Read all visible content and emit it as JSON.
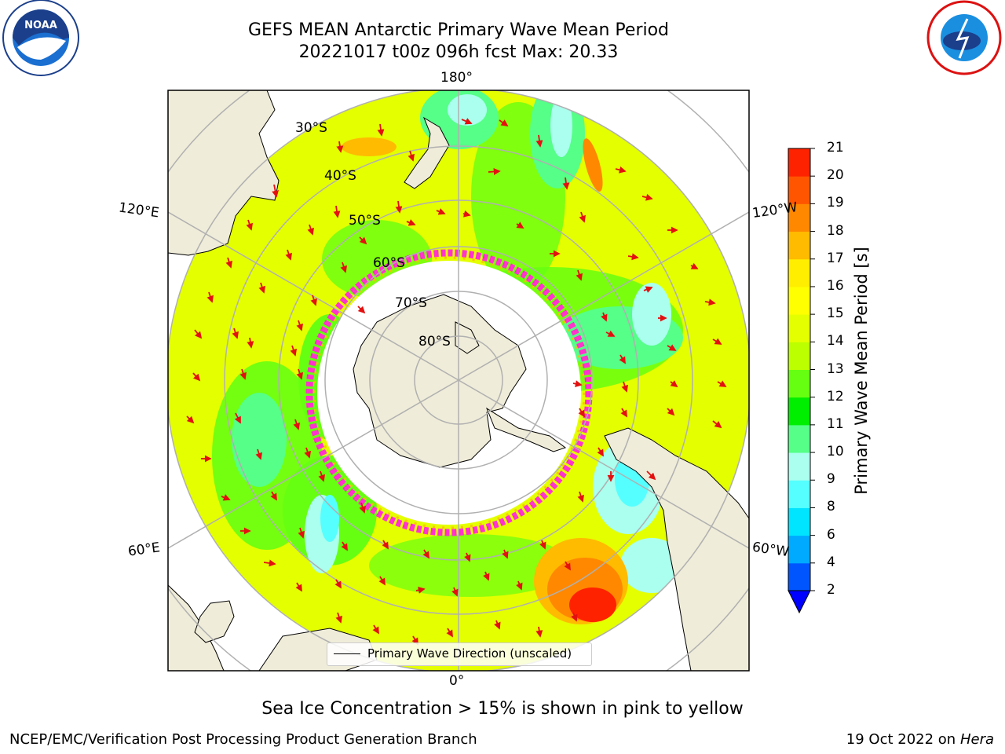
{
  "title": {
    "line1": "GEFS MEAN Antarctic Primary Wave Mean Period",
    "line2": "20221017 t00z 096h fcst   Max: 20.33"
  },
  "logos": {
    "noaa": {
      "text": "NOAA",
      "ring_text": "NATIONAL OCEANIC AND ATMOSPHERIC ADMINISTRATION · U.S. DEPARTMENT OF COMMERCE"
    },
    "nws": {
      "ring_text": "NATIONAL WEATHER SERVICE"
    }
  },
  "map": {
    "longitude_labels": {
      "top": "180°",
      "bottom": "0°",
      "upper_left": "120°E",
      "upper_right": "120°W",
      "lower_left": "60°E",
      "lower_right": "60°W"
    },
    "latitude_labels": [
      "30°S",
      "40°S",
      "50°S",
      "60°S",
      "70°S",
      "80°S"
    ],
    "colors": {
      "land": "#efecd9",
      "ice_free_polar": "#ffffff",
      "grid": "#b0b0b0",
      "arrow": "#e31010",
      "ice_edge": "#ff33cc",
      "ocean_base": "#d4f51a"
    }
  },
  "colorbar": {
    "title": "Primary Wave Mean Period [s]",
    "ticks": [
      "2",
      "4",
      "6",
      "8",
      "9",
      "10",
      "11",
      "12",
      "13",
      "14",
      "15",
      "16",
      "17",
      "18",
      "19",
      "20",
      "21"
    ],
    "colors": [
      "#0055ff",
      "#00aaff",
      "#00e5ff",
      "#55ffff",
      "#aaffee",
      "#55ff88",
      "#00ee00",
      "#66ff11",
      "#bbff00",
      "#e4ff00",
      "#ffff00",
      "#ffee00",
      "#ffbb00",
      "#ff8800",
      "#ff5500",
      "#ff2200",
      "#ff0000"
    ],
    "extend_color": "#0000ff"
  },
  "legend": {
    "label": "Primary Wave Direction (unscaled)"
  },
  "caption": "Sea Ice Concentration > 15% is shown in pink to yellow",
  "footer": {
    "left": "NCEP/EMC/Verification Post Processing Product Generation Branch",
    "right_date": "19 Oct 2022 on ",
    "right_host": "Hera"
  }
}
